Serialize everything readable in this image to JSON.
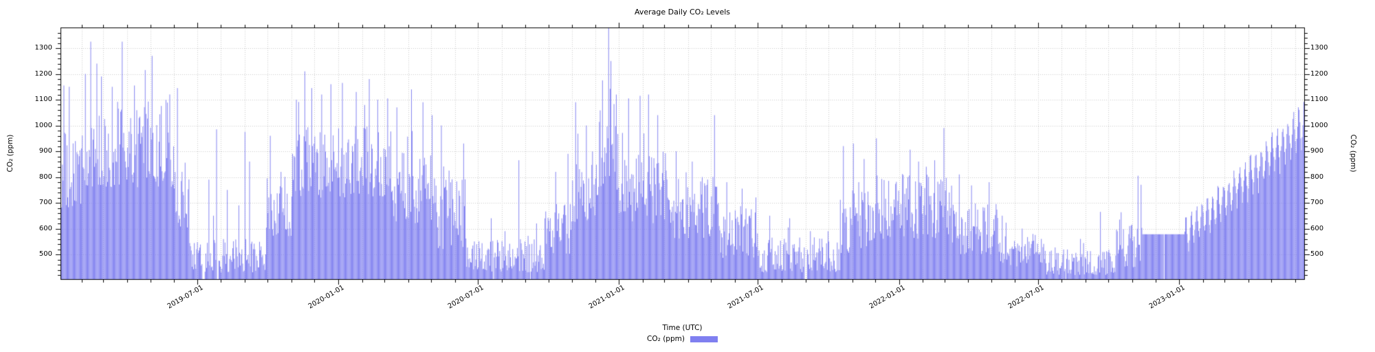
{
  "chart_data": {
    "type": "bar",
    "title": "Average Daily CO₂ Levels",
    "xlabel": "Time (UTC)",
    "ylabel_left": "CO₂ (ppm)",
    "ylabel_right": "CO₂ (ppm)",
    "legend_label": "CO₂ (ppm)",
    "unit": "ppm",
    "bar_color": "#7f7ff0",
    "grid_color": "#cbcbcb",
    "ylim": [
      404,
      1380
    ],
    "yticks": [
      500,
      600,
      700,
      800,
      900,
      1000,
      1100,
      1200,
      1300
    ],
    "minor_y_step": 20,
    "x_start": "2019-01-04",
    "x_end": "2023-06-12",
    "xtick_labels": [
      "2019-07-01",
      "2020-01-01",
      "2020-07-01",
      "2021-01-01",
      "2021-07-01",
      "2022-01-01",
      "2022-07-01",
      "2023-01-01"
    ],
    "grid": "dotted, vertical at every month, horizontal at every 100 ppm",
    "segments": [
      {
        "start": "2019-01-04",
        "end": "2019-01-31",
        "min": 680,
        "max": 980
      },
      {
        "start": "2019-02-01",
        "end": "2019-05-31",
        "min": 760,
        "max": 1100
      },
      {
        "start": "2019-06-01",
        "end": "2019-06-20",
        "min": 600,
        "max": 880
      },
      {
        "start": "2019-06-21",
        "end": "2019-09-28",
        "min": 430,
        "max": 560
      },
      {
        "start": "2019-09-29",
        "end": "2019-10-31",
        "min": 560,
        "max": 820
      },
      {
        "start": "2019-11-01",
        "end": "2020-03-10",
        "min": 720,
        "max": 1000
      },
      {
        "start": "2020-03-11",
        "end": "2020-04-30",
        "min": 620,
        "max": 920
      },
      {
        "start": "2020-05-01",
        "end": "2020-06-15",
        "min": 520,
        "max": 800
      },
      {
        "start": "2020-06-16",
        "end": "2020-09-25",
        "min": 430,
        "max": 560
      },
      {
        "start": "2020-09-26",
        "end": "2020-10-31",
        "min": 500,
        "max": 700
      },
      {
        "start": "2020-11-01",
        "end": "2020-12-04",
        "min": 620,
        "max": 900
      },
      {
        "start": "2020-12-05",
        "end": "2020-12-31",
        "min": 750,
        "max": 1100
      },
      {
        "start": "2021-01-01",
        "end": "2021-03-10",
        "min": 620,
        "max": 900
      },
      {
        "start": "2021-03-11",
        "end": "2021-05-10",
        "min": 560,
        "max": 820
      },
      {
        "start": "2021-05-11",
        "end": "2021-06-30",
        "min": 480,
        "max": 680
      },
      {
        "start": "2021-07-01",
        "end": "2021-10-15",
        "min": 430,
        "max": 570
      },
      {
        "start": "2021-10-16",
        "end": "2021-11-30",
        "min": 500,
        "max": 750
      },
      {
        "start": "2021-12-01",
        "end": "2022-03-10",
        "min": 560,
        "max": 820
      },
      {
        "start": "2022-03-11",
        "end": "2022-05-10",
        "min": 500,
        "max": 700
      },
      {
        "start": "2022-05-11",
        "end": "2022-07-10",
        "min": 450,
        "max": 580
      },
      {
        "start": "2022-07-11",
        "end": "2022-10-10",
        "min": 420,
        "max": 520
      },
      {
        "start": "2022-10-11",
        "end": "2022-11-13",
        "min": 450,
        "max": 620
      }
    ],
    "spikes": {
      "2019-01-08": 1155,
      "2019-01-15": 1150,
      "2019-02-05": 1200,
      "2019-02-12": 1325,
      "2019-02-20": 1240,
      "2019-02-26": 1190,
      "2019-03-12": 1150,
      "2019-03-25": 1325,
      "2019-04-10": 1155,
      "2019-04-24": 1215,
      "2019-05-03": 1270,
      "2019-05-21": 1100,
      "2019-06-05": 1145,
      "2019-07-16": 790,
      "2019-07-22": 650,
      "2019-07-26": 985,
      "2019-08-09": 750,
      "2019-08-24": 690,
      "2019-09-01": 975,
      "2019-09-07": 860,
      "2019-10-04": 960,
      "2019-10-18": 820,
      "2019-11-07": 1100,
      "2019-11-18": 1210,
      "2019-11-27": 1145,
      "2019-12-10": 1120,
      "2019-12-22": 1160,
      "2020-01-06": 1165,
      "2020-01-24": 1130,
      "2020-02-10": 1180,
      "2020-02-21": 1100,
      "2020-03-05": 1105,
      "2020-03-17": 1070,
      "2020-04-05": 1140,
      "2020-04-20": 1090,
      "2020-05-02": 1040,
      "2020-05-14": 1000,
      "2020-05-24": 825,
      "2020-06-12": 930,
      "2020-07-18": 640,
      "2020-08-23": 865,
      "2020-09-15": 620,
      "2020-10-10": 820,
      "2020-10-26": 890,
      "2020-11-05": 1090,
      "2020-11-19": 1000,
      "2020-12-10": 1175,
      "2020-12-18": 1400,
      "2020-12-21": 1250,
      "2020-12-28": 1120,
      "2021-01-13": 1105,
      "2021-01-28": 1115,
      "2021-02-08": 1120,
      "2021-02-20": 1040,
      "2021-03-16": 900,
      "2021-04-06": 860,
      "2021-04-19": 800,
      "2021-05-05": 1040,
      "2021-05-21": 780,
      "2021-06-10": 755,
      "2021-07-16": 650,
      "2021-08-11": 640,
      "2021-09-07": 590,
      "2021-10-20": 920,
      "2021-11-02": 930,
      "2021-11-16": 870,
      "2021-12-02": 950,
      "2021-12-18": 785,
      "2022-01-12": 800,
      "2022-01-26": 860,
      "2022-02-05": 840,
      "2022-02-16": 865,
      "2022-02-28": 990,
      "2022-03-20": 810,
      "2022-04-28": 780,
      "2022-05-15": 650,
      "2022-06-10": 600,
      "2022-07-05": 560,
      "2022-08-25": 560,
      "2022-09-20": 665,
      "2022-10-15": 635,
      "2022-10-28": 610,
      "2022-11-08": 805,
      "2022-11-12": 770
    },
    "flat_period": {
      "start": "2022-11-14",
      "end": "2023-01-07",
      "value": 578
    },
    "trend": {
      "start": "2023-01-08",
      "end": "2023-06-12",
      "start_min": 480,
      "start_max": 640,
      "end_min": 860,
      "end_max": 1100,
      "cycle_days": 7
    },
    "gaps": [
      "2019-07-08",
      "2019-07-09",
      "2019-07-10",
      "2019-07-27",
      "2019-07-28",
      "2020-07-21",
      "2020-09-07",
      "2021-08-31",
      "2021-09-01",
      "2021-09-02",
      "2022-08-06",
      "2022-12-12"
    ]
  }
}
